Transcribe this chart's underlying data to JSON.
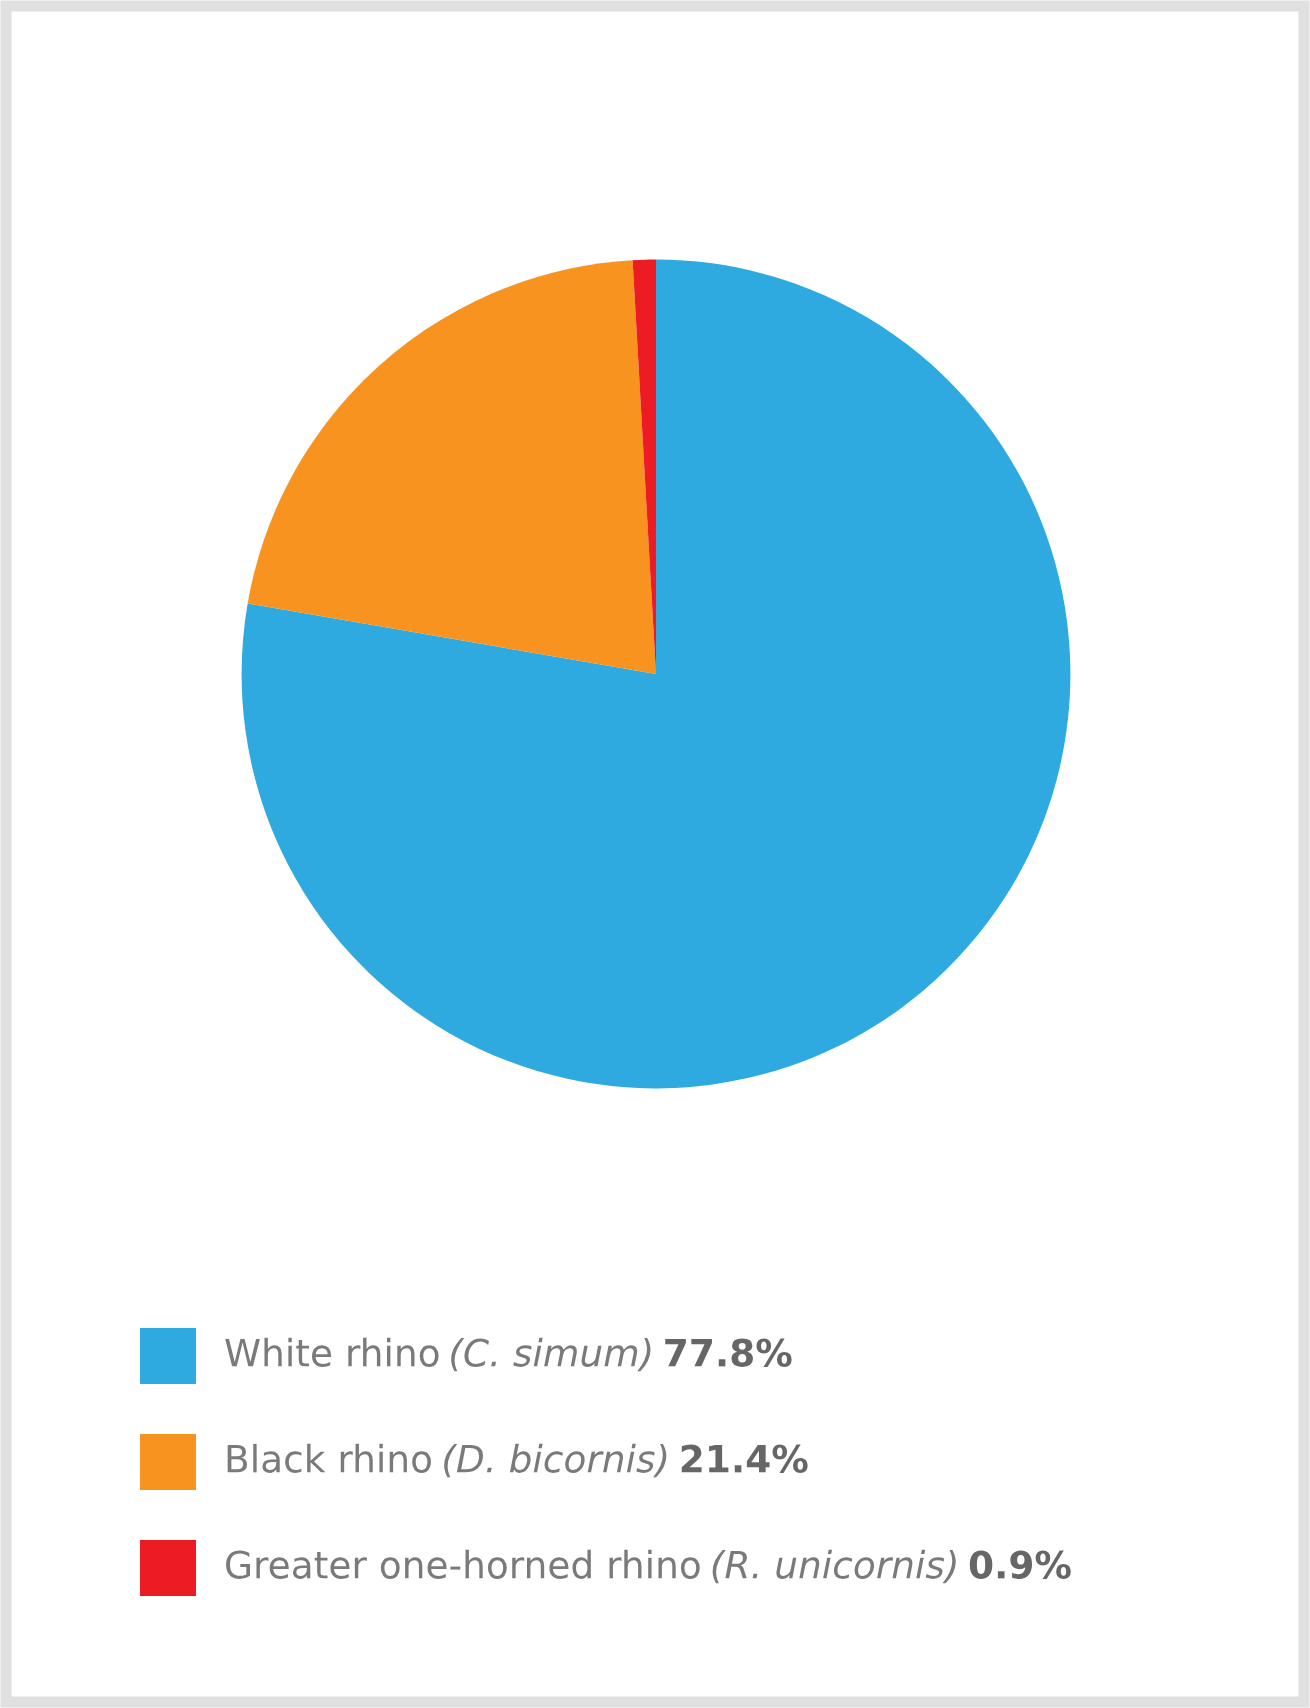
{
  "chart_data": {
    "type": "pie",
    "categories": [
      "White rhino (C. simum)",
      "Black rhino (D. bicornis)",
      "Greater one-horned rhino (R. unicornis)"
    ],
    "values": [
      77.8,
      21.4,
      0.9
    ],
    "value_labels": [
      "77.8%",
      "21.4%",
      "0.9%"
    ],
    "colors": [
      "#2eaae1",
      "#f7931e",
      "#ed1c24"
    ],
    "legend": "bottom"
  }
}
